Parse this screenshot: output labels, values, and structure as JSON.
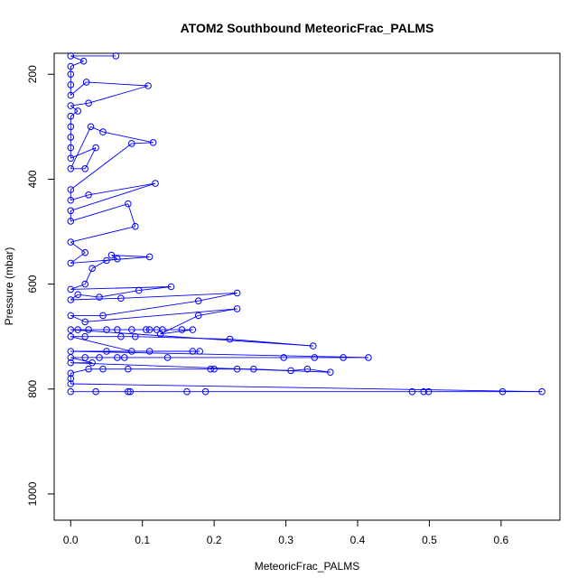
{
  "chart_data": {
    "type": "scatter",
    "title": "ATOM2 Southbound MeteoricFrac_PALMS",
    "xlabel": "MeteoricFrac_PALMS",
    "ylabel": "Pressure (mbar)",
    "xlim": [
      -0.023,
      0.682
    ],
    "ylim": [
      1050,
      160
    ],
    "y_reversed": true,
    "xticks": [
      0.0,
      0.1,
      0.2,
      0.3,
      0.4,
      0.5,
      0.6
    ],
    "xtick_labels": [
      "0.0",
      "0.1",
      "0.2",
      "0.3",
      "0.4",
      "0.5",
      "0.6"
    ],
    "yticks": [
      200,
      400,
      600,
      800,
      1000
    ],
    "ytick_labels": [
      "200",
      "400",
      "600",
      "800",
      "1000"
    ],
    "grid": false,
    "legend": "none",
    "series": [
      {
        "color": "#0000ff",
        "marker": "open-circle",
        "points": [
          [
            0.0,
            805
          ],
          [
            0.035,
            805
          ],
          [
            0.08,
            805
          ],
          [
            0.083,
            805
          ],
          [
            0.162,
            805
          ],
          [
            0.188,
            805
          ],
          [
            0.476,
            805
          ],
          [
            0.492,
            805
          ],
          [
            0.499,
            805
          ],
          [
            0.602,
            805
          ],
          [
            0.657,
            805
          ],
          [
            0.0,
            790
          ],
          [
            0.0,
            780
          ],
          [
            0.0,
            770
          ],
          [
            0.025,
            762
          ],
          [
            0.045,
            762
          ],
          [
            0.08,
            762
          ],
          [
            0.195,
            762
          ],
          [
            0.2,
            762
          ],
          [
            0.232,
            762
          ],
          [
            0.255,
            762
          ],
          [
            0.307,
            765
          ],
          [
            0.33,
            762
          ],
          [
            0.362,
            768
          ],
          [
            0.0,
            750
          ],
          [
            0.03,
            750
          ],
          [
            0.0,
            740
          ],
          [
            0.02,
            740
          ],
          [
            0.04,
            740
          ],
          [
            0.065,
            740
          ],
          [
            0.075,
            740
          ],
          [
            0.135,
            740
          ],
          [
            0.297,
            740
          ],
          [
            0.34,
            740
          ],
          [
            0.38,
            740
          ],
          [
            0.415,
            740
          ],
          [
            0.0,
            728
          ],
          [
            0.05,
            728
          ],
          [
            0.11,
            728
          ],
          [
            0.17,
            728
          ],
          [
            0.18,
            728
          ],
          [
            0.085,
            728
          ],
          [
            0.0,
            700
          ],
          [
            0.02,
            700
          ],
          [
            0.07,
            700
          ],
          [
            0.09,
            700
          ],
          [
            0.222,
            705
          ],
          [
            0.338,
            718
          ],
          [
            0.0,
            687
          ],
          [
            0.01,
            687
          ],
          [
            0.025,
            687
          ],
          [
            0.05,
            687
          ],
          [
            0.065,
            687
          ],
          [
            0.085,
            687
          ],
          [
            0.105,
            687
          ],
          [
            0.11,
            687
          ],
          [
            0.12,
            687
          ],
          [
            0.128,
            687
          ],
          [
            0.155,
            687
          ],
          [
            0.17,
            687
          ],
          [
            0.125,
            695
          ],
          [
            0.178,
            660
          ],
          [
            0.232,
            647
          ],
          [
            0.02,
            672
          ],
          [
            0.0,
            660
          ],
          [
            0.045,
            660
          ],
          [
            0.178,
            632
          ],
          [
            0.232,
            617
          ],
          [
            0.07,
            627
          ],
          [
            0.0,
            630
          ],
          [
            0.01,
            620
          ],
          [
            0.04,
            625
          ],
          [
            0.095,
            612
          ],
          [
            0.14,
            605
          ],
          [
            0.0,
            610
          ],
          [
            0.02,
            600
          ],
          [
            0.03,
            570
          ],
          [
            0.05,
            555
          ],
          [
            0.065,
            552
          ],
          [
            0.057,
            545
          ],
          [
            0.11,
            548
          ],
          [
            0.0,
            560
          ],
          [
            0.02,
            540
          ],
          [
            0.0,
            520
          ],
          [
            0.09,
            490
          ],
          [
            0.08,
            447
          ],
          [
            0.0,
            480
          ],
          [
            0.0,
            460
          ],
          [
            0.118,
            408
          ],
          [
            0.025,
            430
          ],
          [
            0.0,
            440
          ],
          [
            0.0,
            420
          ],
          [
            0.085,
            332
          ],
          [
            0.115,
            330
          ],
          [
            0.045,
            310
          ],
          [
            0.028,
            300
          ],
          [
            0.0,
            380
          ],
          [
            0.02,
            380
          ],
          [
            0.035,
            340
          ],
          [
            0.0,
            360
          ],
          [
            0.0,
            340
          ],
          [
            0.0,
            320
          ],
          [
            0.0,
            300
          ],
          [
            0.0,
            280
          ],
          [
            0.01,
            270
          ],
          [
            0.0,
            260
          ],
          [
            0.025,
            255
          ],
          [
            0.108,
            222
          ],
          [
            0.022,
            215
          ],
          [
            0.0,
            240
          ],
          [
            0.0,
            220
          ],
          [
            0.0,
            200
          ],
          [
            0.0,
            185
          ],
          [
            0.018,
            175
          ],
          [
            0.0,
            165
          ],
          [
            0.063,
            165
          ]
        ]
      }
    ]
  }
}
